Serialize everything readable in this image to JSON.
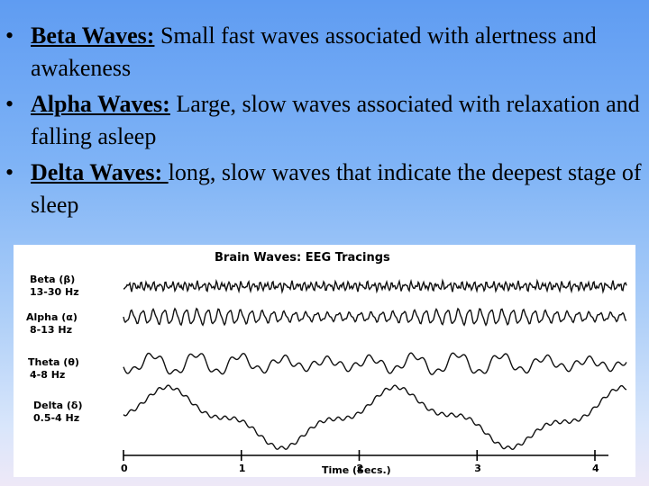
{
  "bullets": [
    {
      "term": "Beta Waves:",
      "text": " Small fast waves associated with alertness and awakeness"
    },
    {
      "term": "Alpha Waves:",
      "text": " Large, slow waves associated with relaxation and falling asleep"
    },
    {
      "term": "Delta Waves: ",
      "text": "long, slow waves that indicate the deepest stage of sleep"
    }
  ],
  "figure": {
    "title": "Brain Waves: EEG Tracings",
    "bands": [
      {
        "name": "Beta (β)",
        "range": "13-30 Hz"
      },
      {
        "name": "Alpha (α)",
        "range": "8-13 Hz"
      },
      {
        "name": "Theta (θ)",
        "range": "4-8 Hz"
      },
      {
        "name": "Delta (δ)",
        "range": "0.5-4 Hz"
      }
    ],
    "axis": {
      "ticks": [
        "0",
        "1",
        "2",
        "3",
        "4"
      ],
      "title": "Time (Secs.)"
    }
  },
  "chart_data": {
    "type": "line",
    "title": "Brain Waves: EEG Tracings",
    "xlabel": "Time (Secs.)",
    "ylabel": "",
    "xlim": [
      0,
      4
    ],
    "x_ticks": [
      0,
      1,
      2,
      3,
      4
    ],
    "series": [
      {
        "name": "Beta (β)",
        "range": "13-30 Hz"
      },
      {
        "name": "Alpha (α)",
        "range": "8-13 Hz"
      },
      {
        "name": "Theta (θ)",
        "range": "4-8 Hz"
      },
      {
        "name": "Delta (δ)",
        "range": "0.5-4 Hz"
      }
    ]
  }
}
